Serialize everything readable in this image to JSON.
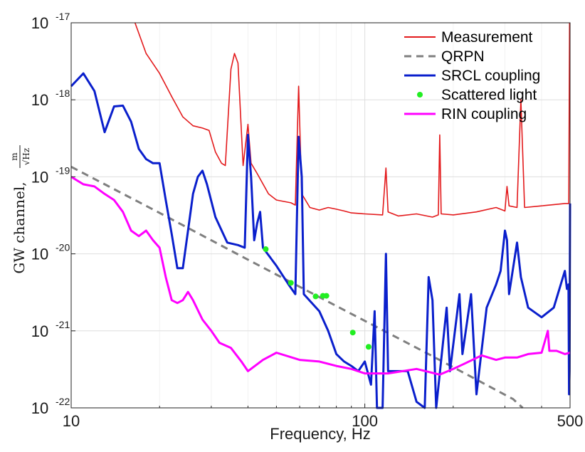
{
  "chart_data": {
    "type": "line",
    "xscale": "log",
    "yscale": "log",
    "xlim": [
      10,
      500
    ],
    "ylim": [
      1e-22,
      1e-17
    ],
    "xticks": [
      10,
      100,
      500
    ],
    "xtick_labels": [
      "10",
      "100",
      "500"
    ],
    "ytick_exponents": [
      -17,
      -18,
      -19,
      -20,
      -21,
      -22
    ],
    "ytick_base": "10",
    "xlabel": "Frequency, Hz",
    "ylabel": "GW channel,",
    "ylabel_unit_num": "m",
    "ylabel_unit_den": "√Hz",
    "grid": true,
    "legend_position": "top-right",
    "series": [
      {
        "name": "Measurement",
        "style": "line",
        "color": "#e31a1c",
        "points": [
          [
            16.5,
            1e-17
          ],
          [
            18,
            4e-18
          ],
          [
            20,
            2.2e-18
          ],
          [
            22,
            1.1e-18
          ],
          [
            24,
            6e-19
          ],
          [
            26,
            4.6e-19
          ],
          [
            28,
            4.3e-19
          ],
          [
            29.5,
            4e-19
          ],
          [
            31,
            2.1e-19
          ],
          [
            32.5,
            1.5e-19
          ],
          [
            33.5,
            1.4e-19
          ],
          [
            35,
            2.5e-18
          ],
          [
            36,
            4e-18
          ],
          [
            37,
            3e-18
          ],
          [
            38.5,
            1.4e-19
          ],
          [
            40,
            4.8e-19
          ],
          [
            41,
            1.5e-19
          ],
          [
            43,
            1.1e-19
          ],
          [
            47,
            6e-20
          ],
          [
            50,
            5e-20
          ],
          [
            56,
            4.6e-20
          ],
          [
            58,
            4.3e-20
          ],
          [
            59.5,
            1.5e-18
          ],
          [
            61,
            6e-20
          ],
          [
            65,
            4e-20
          ],
          [
            70,
            3.7e-20
          ],
          [
            75,
            4e-20
          ],
          [
            80,
            3.8e-20
          ],
          [
            85,
            3.6e-20
          ],
          [
            90,
            3.4e-20
          ],
          [
            100,
            3.3e-20
          ],
          [
            115,
            3.2e-20
          ],
          [
            118,
            1.3e-19
          ],
          [
            120,
            3.5e-20
          ],
          [
            130,
            3.1e-20
          ],
          [
            150,
            3.3e-20
          ],
          [
            170,
            3e-20
          ],
          [
            178,
            3.2e-20
          ],
          [
            180,
            3.5e-19
          ],
          [
            182,
            3.3e-20
          ],
          [
            200,
            3.2e-20
          ],
          [
            240,
            3.5e-20
          ],
          [
            280,
            4e-20
          ],
          [
            300,
            3.6e-20
          ],
          [
            305,
            7.5e-20
          ],
          [
            310,
            4.2e-20
          ],
          [
            330,
            4e-20
          ],
          [
            340,
            1e-18
          ],
          [
            350,
            4e-20
          ],
          [
            400,
            4.2e-20
          ],
          [
            480,
            4.5e-20
          ],
          [
            495,
            4.5e-20
          ],
          [
            498,
            1e-17
          ]
        ]
      },
      {
        "name": "QRPN",
        "style": "dashed",
        "color": "#7f7f7f",
        "points": [
          [
            10,
            1.35e-19
          ],
          [
            20,
            3.4e-20
          ],
          [
            40,
            8.4e-21
          ],
          [
            80,
            2.1e-21
          ],
          [
            160,
            5.3e-22
          ],
          [
            320,
            1.3e-22
          ],
          [
            345,
            1e-22
          ]
        ]
      },
      {
        "name": "SRCL coupling",
        "style": "line",
        "color": "#0a1fcc",
        "points": [
          [
            10,
            1.5e-18
          ],
          [
            11,
            2.2e-18
          ],
          [
            12,
            1.3e-18
          ],
          [
            13,
            3.8e-19
          ],
          [
            14,
            8.2e-19
          ],
          [
            15,
            8.4e-19
          ],
          [
            16,
            5.2e-19
          ],
          [
            17,
            2.3e-19
          ],
          [
            18,
            1.7e-19
          ],
          [
            19,
            1.5e-19
          ],
          [
            20,
            1.5e-19
          ],
          [
            21,
            5e-20
          ],
          [
            22,
            1.8e-20
          ],
          [
            23,
            6.5e-21
          ],
          [
            24,
            6.5e-21
          ],
          [
            25,
            2e-20
          ],
          [
            26,
            6e-20
          ],
          [
            27,
            1e-19
          ],
          [
            28,
            1.2e-19
          ],
          [
            29,
            8e-20
          ],
          [
            31,
            3e-20
          ],
          [
            34,
            1.4e-20
          ],
          [
            37,
            1.3e-20
          ],
          [
            39,
            1.2e-20
          ],
          [
            40,
            3.5e-19
          ],
          [
            41,
            1e-19
          ],
          [
            42,
            1.5e-20
          ],
          [
            43,
            2.5e-20
          ],
          [
            44,
            3.5e-20
          ],
          [
            45,
            1.2e-20
          ],
          [
            50,
            7e-21
          ],
          [
            55,
            4e-21
          ],
          [
            58,
            3e-21
          ],
          [
            59.5,
            3.3e-19
          ],
          [
            61,
            1e-19
          ],
          [
            62,
            3e-21
          ],
          [
            70,
            1.8e-21
          ],
          [
            75,
            1e-21
          ],
          [
            80,
            5e-22
          ],
          [
            85,
            4e-22
          ],
          [
            90,
            3.5e-22
          ],
          [
            95,
            3e-22
          ],
          [
            100,
            4e-22
          ],
          [
            105,
            2e-22
          ],
          [
            108,
            1.8e-21
          ],
          [
            110,
            1e-22
          ],
          [
            115,
            1e-22
          ],
          [
            118,
            1e-20
          ],
          [
            120,
            3e-22
          ],
          [
            130,
            3e-22
          ],
          [
            140,
            3e-22
          ],
          [
            150,
            1.2e-22
          ],
          [
            160,
            1e-22
          ],
          [
            165,
            5e-21
          ],
          [
            170,
            2.5e-21
          ],
          [
            175,
            1e-22
          ],
          [
            190,
            2e-21
          ],
          [
            195,
            3e-22
          ],
          [
            210,
            3e-21
          ],
          [
            215,
            5e-22
          ],
          [
            230,
            3e-21
          ],
          [
            240,
            1.5e-22
          ],
          [
            260,
            2e-21
          ],
          [
            280,
            4e-21
          ],
          [
            290,
            6e-21
          ],
          [
            300,
            2e-20
          ],
          [
            305,
            1.5e-20
          ],
          [
            310,
            3e-21
          ],
          [
            330,
            1.4e-20
          ],
          [
            340,
            5e-21
          ],
          [
            360,
            2e-21
          ],
          [
            400,
            1.5e-21
          ],
          [
            440,
            2e-21
          ],
          [
            480,
            6e-21
          ],
          [
            488,
            3.5e-21
          ],
          [
            494,
            4e-21
          ],
          [
            496,
            1.5e-22
          ],
          [
            498,
            3e-22
          ],
          [
            500,
            4.5e-20
          ]
        ]
      },
      {
        "name": "Scattered light",
        "style": "markers",
        "color": "#22ee22",
        "points": [
          [
            46,
            1.15e-20
          ],
          [
            56,
            4.2e-21
          ],
          [
            68,
            2.8e-21
          ],
          [
            72,
            2.85e-21
          ],
          [
            74,
            2.85e-21
          ],
          [
            91,
            9.5e-22
          ],
          [
            103,
            6.2e-22
          ]
        ]
      },
      {
        "name": "RIN coupling",
        "style": "line",
        "color": "#ff00ff",
        "points": [
          [
            10,
            1e-19
          ],
          [
            11,
            8e-20
          ],
          [
            12,
            7.5e-20
          ],
          [
            13,
            6e-20
          ],
          [
            14,
            5e-20
          ],
          [
            15,
            3.5e-20
          ],
          [
            16,
            2e-20
          ],
          [
            17,
            1.7e-20
          ],
          [
            18,
            2e-20
          ],
          [
            19,
            1.5e-20
          ],
          [
            20,
            1.2e-20
          ],
          [
            21,
            5e-21
          ],
          [
            22,
            2.5e-21
          ],
          [
            23,
            2.3e-21
          ],
          [
            24,
            2.5e-21
          ],
          [
            25,
            3.2e-21
          ],
          [
            26,
            2.5e-21
          ],
          [
            28,
            1.4e-21
          ],
          [
            30,
            1e-21
          ],
          [
            32,
            7e-22
          ],
          [
            35,
            6e-22
          ],
          [
            38,
            4e-22
          ],
          [
            40,
            3e-22
          ],
          [
            45,
            4.2e-22
          ],
          [
            50,
            5.2e-22
          ],
          [
            60,
            4.2e-22
          ],
          [
            70,
            4e-22
          ],
          [
            80,
            3.5e-22
          ],
          [
            90,
            3.2e-22
          ],
          [
            100,
            2.8e-22
          ],
          [
            120,
            2.8e-22
          ],
          [
            150,
            3.2e-22
          ],
          [
            180,
            2.7e-22
          ],
          [
            200,
            3.2e-22
          ],
          [
            220,
            3.8e-22
          ],
          [
            250,
            4.8e-22
          ],
          [
            280,
            4.2e-22
          ],
          [
            300,
            4.5e-22
          ],
          [
            330,
            4.5e-22
          ],
          [
            360,
            5e-22
          ],
          [
            400,
            5.2e-22
          ],
          [
            420,
            1e-21
          ],
          [
            425,
            5.5e-22
          ],
          [
            450,
            5.5e-22
          ],
          [
            480,
            5e-22
          ],
          [
            500,
            5.2e-22
          ]
        ]
      }
    ]
  }
}
